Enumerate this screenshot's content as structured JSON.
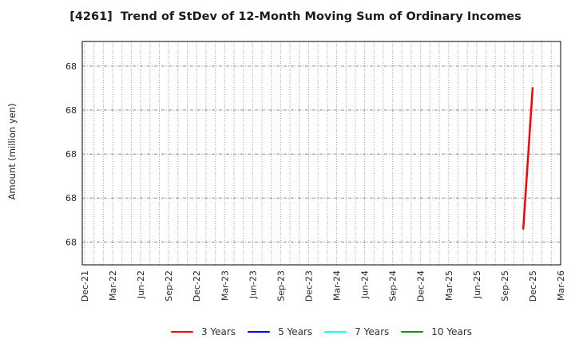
{
  "header": {
    "title": "[4261]  Trend of StDev of 12-Month Moving Sum of Ordinary Incomes"
  },
  "axes": {
    "ylabel": "Amount (million yen)"
  },
  "chart_data": {
    "type": "line",
    "title": "[4261]  Trend of StDev of 12-Month Moving Sum of Ordinary Incomes",
    "xlabel": "",
    "ylabel": "Amount (million yen)",
    "x_axis": {
      "start_month": "Dec-21",
      "end_month": "Mar-26",
      "months_total": 51,
      "tick_every_months": 3,
      "tick_labels": [
        "Dec-21",
        "Mar-22",
        "Jun-22",
        "Sep-22",
        "Dec-22",
        "Mar-23",
        "Jun-23",
        "Sep-23",
        "Dec-23",
        "Mar-24",
        "Jun-24",
        "Sep-24",
        "Dec-24",
        "Mar-25",
        "Jun-25",
        "Sep-25",
        "Dec-25",
        "Mar-26"
      ]
    },
    "y_axis": {
      "tick_labels": [
        "68",
        "68",
        "68",
        "68",
        "68"
      ],
      "tick_values": [
        67.8,
        67.9,
        68.0,
        68.1,
        68.2
      ],
      "ylim": [
        67.748,
        68.256
      ]
    },
    "grid": {
      "show": true,
      "vertical_color": "#9e9e9e",
      "horizontal_color": "#8a8a8a"
    },
    "plot_border_color": "#2b2b2b",
    "legend_position": "bottom-center",
    "series": [
      {
        "name": "3 Years",
        "color": "#ff0000",
        "points": [
          {
            "month": "Nov-25",
            "month_index": 47,
            "value": 67.83
          },
          {
            "month": "Dec-25",
            "month_index": 48,
            "value": 68.15
          }
        ]
      },
      {
        "name": "5 Years",
        "color": "#0000ff",
        "points": []
      },
      {
        "name": "7 Years",
        "color": "#00ffff",
        "points": []
      },
      {
        "name": "10 Years",
        "color": "#0f9410",
        "points": []
      }
    ]
  }
}
